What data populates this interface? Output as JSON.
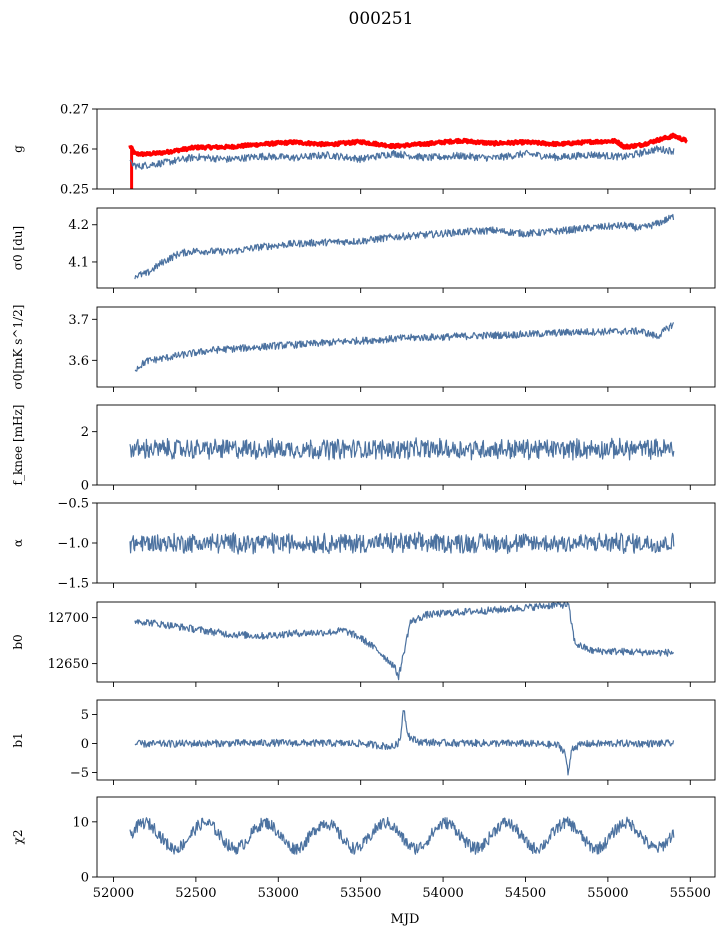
{
  "figure_title": "000251",
  "colors": {
    "series": "#4c72a0",
    "overlay": "#ff0000"
  },
  "chart_data": {
    "type": "line",
    "title": "000251",
    "xlabel": "MJD",
    "xlim": [
      51900,
      55650
    ],
    "x_ticks": [
      52000,
      52500,
      53000,
      53500,
      54000,
      54500,
      55000,
      55500
    ],
    "panels": [
      {
        "ylabel": "g",
        "ylim": [
          0.25,
          0.27
        ],
        "y_ticks": [
          0.25,
          0.26,
          0.27
        ],
        "y_tick_labels": [
          "0.25",
          "0.26",
          "0.27"
        ],
        "series": [
          {
            "color": "#ff0000",
            "width": 3.5,
            "x": [
              52100,
              52130,
              52200,
              52300,
              52500,
              52700,
              52900,
              53100,
              53300,
              53500,
              53700,
              53900,
              54100,
              54300,
              54500,
              54700,
              54900,
              55050,
              55100,
              55200,
              55300,
              55400,
              55480
            ],
            "y": [
              0.2608,
              0.2588,
              0.2587,
              0.2591,
              0.2604,
              0.2605,
              0.2612,
              0.2617,
              0.2611,
              0.2618,
              0.2607,
              0.2613,
              0.2621,
              0.2614,
              0.2617,
              0.2612,
              0.2618,
              0.262,
              0.2605,
              0.261,
              0.2622,
              0.2633,
              0.262
            ]
          },
          {
            "color": "#4c72a0",
            "width": 1.2,
            "x": [
              52100,
              52150,
              52200,
              52300,
              52500,
              52700,
              52900,
              53100,
              53300,
              53500,
              53700,
              53900,
              54100,
              54300,
              54500,
              54700,
              54900,
              55100,
              55300,
              55400
            ],
            "y": [
              0.2565,
              0.2556,
              0.256,
              0.2565,
              0.258,
              0.2574,
              0.2582,
              0.2578,
              0.2585,
              0.2575,
              0.2589,
              0.2578,
              0.2583,
              0.2577,
              0.2588,
              0.2579,
              0.2586,
              0.258,
              0.26,
              0.2595
            ]
          }
        ]
      },
      {
        "ylabel": "σ0 [du]",
        "ylim": [
          4.03,
          4.245
        ],
        "y_ticks": [
          4.1,
          4.2
        ],
        "y_tick_labels": [
          "4.1",
          "4.2"
        ],
        "series": [
          {
            "color": "#4c72a0",
            "width": 1.2,
            "x": [
              52130,
              52200,
              52300,
              52400,
              52500,
              52700,
              52900,
              53100,
              53300,
              53500,
              53700,
              53900,
              54100,
              54300,
              54500,
              54700,
              54900,
              55100,
              55200,
              55300,
              55400
            ],
            "y": [
              4.063,
              4.068,
              4.1,
              4.123,
              4.13,
              4.127,
              4.141,
              4.149,
              4.153,
              4.156,
              4.167,
              4.173,
              4.18,
              4.185,
              4.176,
              4.183,
              4.192,
              4.198,
              4.19,
              4.203,
              4.222
            ]
          }
        ]
      },
      {
        "ylabel": "σ0[mK s^1/2]",
        "ylim": [
          3.535,
          3.73
        ],
        "y_ticks": [
          3.6,
          3.7
        ],
        "y_tick_labels": [
          "3.6",
          "3.7"
        ],
        "series": [
          {
            "color": "#4c72a0",
            "width": 1.2,
            "x": [
              52130,
              52200,
              52400,
              52600,
              52800,
              53000,
              53200,
              53400,
              53600,
              53800,
              54000,
              54200,
              54400,
              54600,
              54800,
              55000,
              55200,
              55300,
              55400
            ],
            "y": [
              3.578,
              3.598,
              3.612,
              3.625,
              3.63,
              3.636,
              3.64,
              3.646,
              3.65,
              3.655,
              3.657,
              3.66,
              3.662,
              3.665,
              3.669,
              3.67,
              3.671,
              3.658,
              3.69
            ]
          }
        ]
      },
      {
        "ylabel": "f_knee [mHz]",
        "ylim": [
          0,
          3
        ],
        "y_ticks": [
          0,
          2
        ],
        "y_tick_labels": [
          "0",
          "2"
        ],
        "series": [
          {
            "color": "#4c72a0",
            "width": 1.2,
            "style": "noisy",
            "x": [
              52100,
              55400
            ],
            "y": [
              1.35,
              1.35
            ]
          }
        ]
      },
      {
        "ylabel": "α",
        "ylim": [
          -1.5,
          -0.5
        ],
        "y_ticks": [
          -1.5,
          -1.0,
          -0.5
        ],
        "y_tick_labels": [
          "−1.5",
          "−1.0",
          "−0.5"
        ],
        "series": [
          {
            "color": "#4c72a0",
            "width": 1.2,
            "style": "noisy",
            "x": [
              52100,
              55400
            ],
            "y": [
              -1.0,
              -1.0
            ]
          }
        ]
      },
      {
        "ylabel": "b0",
        "ylim": [
          12630,
          12717
        ],
        "y_ticks": [
          12650,
          12700
        ],
        "y_tick_labels": [
          "12650",
          "12700"
        ],
        "series": [
          {
            "color": "#4c72a0",
            "width": 1.2,
            "x": [
              52130,
              52400,
              52700,
              52900,
              53100,
              53300,
              53400,
              53500,
              53600,
              53700,
              53730,
              53760,
              53800,
              53900,
              54100,
              54300,
              54500,
              54700,
              54760,
              54800,
              54900,
              55100,
              55300,
              55400
            ],
            "y": [
              12697,
              12690,
              12682,
              12680,
              12683,
              12684,
              12686,
              12678,
              12665,
              12648,
              12636,
              12660,
              12695,
              12703,
              12706,
              12708,
              12711,
              12714,
              12714,
              12672,
              12664,
              12663,
              12662,
              12662
            ]
          }
        ]
      },
      {
        "ylabel": "b1",
        "ylim": [
          -6.3,
          7.5
        ],
        "y_ticks": [
          -5,
          0,
          5
        ],
        "y_tick_labels": [
          "−5",
          "0",
          "5"
        ],
        "series": [
          {
            "color": "#4c72a0",
            "width": 1.2,
            "x": [
              52130,
              52500,
              53000,
              53500,
              53700,
              53740,
              53760,
              53780,
              53800,
              53850,
              54000,
              54500,
              54700,
              54740,
              54760,
              54780,
              54850,
              55000,
              55400
            ],
            "y": [
              -0.1,
              0.0,
              0.1,
              0.0,
              -0.6,
              0.5,
              6.5,
              2.5,
              1.0,
              0.3,
              0.1,
              0.0,
              -0.3,
              -1.5,
              -5.5,
              -0.8,
              -0.1,
              0.0,
              0.0
            ]
          }
        ]
      },
      {
        "ylabel": "χ2",
        "ylim": [
          0,
          14.5
        ],
        "y_ticks": [
          0,
          10
        ],
        "y_tick_labels": [
          "0",
          "10"
        ],
        "series": [
          {
            "color": "#4c72a0",
            "width": 1.2,
            "style": "oscillating",
            "x": [
              52100,
              55400
            ],
            "y": [
              7.5,
              7.5
            ],
            "amplitude": 2.3,
            "period": 365
          }
        ]
      }
    ]
  }
}
